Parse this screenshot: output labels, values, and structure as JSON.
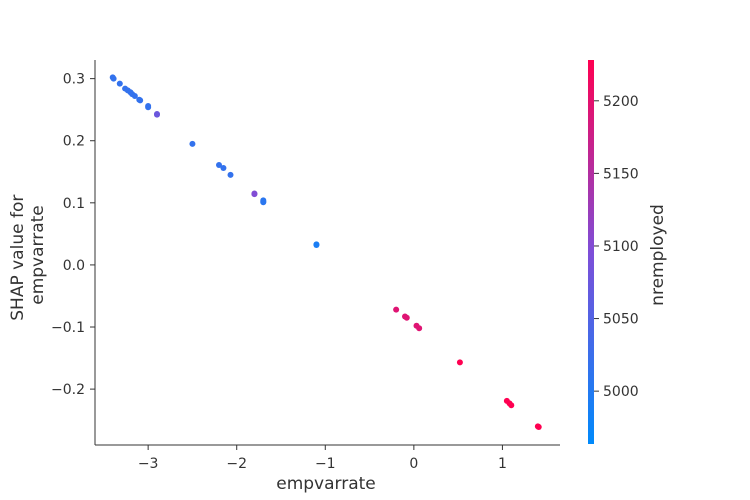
{
  "chart_data": {
    "type": "scatter",
    "title": "",
    "xlabel": "empvarrate",
    "ylabel_lines": [
      "SHAP value for",
      "empvarrate"
    ],
    "xlim": [
      -3.6,
      1.65
    ],
    "ylim": [
      -0.29,
      0.33
    ],
    "x_ticks": [
      -3,
      -2,
      -1,
      0,
      1
    ],
    "x_tick_labels": [
      "−3",
      "−2",
      "−1",
      "0",
      "1"
    ],
    "y_ticks": [
      0.3,
      0.2,
      0.1,
      0.0,
      -0.1,
      -0.2
    ],
    "y_tick_labels": [
      "0.3",
      "0.2",
      "0.1",
      "0.0",
      "−0.1",
      "−0.2"
    ],
    "colorbar": {
      "label": "nremployed",
      "range": [
        4963.6,
        5228.1
      ],
      "ticks": [
        5000,
        5050,
        5100,
        5150,
        5200
      ],
      "tick_labels": [
        "5000",
        "5050",
        "5100",
        "5150",
        "5200"
      ],
      "colors": [
        "#008afb",
        "#7e4ed8",
        "#ff0051"
      ]
    },
    "points": [
      {
        "x": -3.4,
        "y": 0.302,
        "c": 5017
      },
      {
        "x": -3.39,
        "y": 0.3,
        "c": 5017
      },
      {
        "x": -3.32,
        "y": 0.292,
        "c": 5017
      },
      {
        "x": -3.26,
        "y": 0.284,
        "c": 5017
      },
      {
        "x": -3.23,
        "y": 0.281,
        "c": 5017
      },
      {
        "x": -3.2,
        "y": 0.278,
        "c": 5017
      },
      {
        "x": -3.18,
        "y": 0.275,
        "c": 5017
      },
      {
        "x": -3.15,
        "y": 0.272,
        "c": 5017
      },
      {
        "x": -3.1,
        "y": 0.266,
        "c": 5017
      },
      {
        "x": -3.09,
        "y": 0.265,
        "c": 5017
      },
      {
        "x": -3.0,
        "y": 0.256,
        "c": 5017
      },
      {
        "x": -3.0,
        "y": 0.254,
        "c": 5017
      },
      {
        "x": -2.9,
        "y": 0.242,
        "c": 5076
      },
      {
        "x": -2.9,
        "y": 0.243,
        "c": 5076
      },
      {
        "x": -2.5,
        "y": 0.195,
        "c": 5017
      },
      {
        "x": -2.2,
        "y": 0.161,
        "c": 5017
      },
      {
        "x": -2.15,
        "y": 0.156,
        "c": 5017
      },
      {
        "x": -2.07,
        "y": 0.145,
        "c": 5017
      },
      {
        "x": -1.8,
        "y": 0.114,
        "c": 5099
      },
      {
        "x": -1.8,
        "y": 0.115,
        "c": 5099
      },
      {
        "x": -1.7,
        "y": 0.101,
        "c": 5008
      },
      {
        "x": -1.7,
        "y": 0.104,
        "c": 5008
      },
      {
        "x": -1.7,
        "y": 0.102,
        "c": 5008
      },
      {
        "x": -1.1,
        "y": 0.033,
        "c": 4991
      },
      {
        "x": -1.1,
        "y": 0.032,
        "c": 4991
      },
      {
        "x": -0.2,
        "y": -0.072,
        "c": 5195
      },
      {
        "x": -0.1,
        "y": -0.083,
        "c": 5195
      },
      {
        "x": -0.08,
        "y": -0.085,
        "c": 5195
      },
      {
        "x": 0.03,
        "y": -0.098,
        "c": 5195
      },
      {
        "x": 0.06,
        "y": -0.102,
        "c": 5195
      },
      {
        "x": 0.52,
        "y": -0.157,
        "c": 5228
      },
      {
        "x": 1.05,
        "y": -0.219,
        "c": 5228
      },
      {
        "x": 1.08,
        "y": -0.223,
        "c": 5228
      },
      {
        "x": 1.1,
        "y": -0.226,
        "c": 5228
      },
      {
        "x": 1.4,
        "y": -0.26,
        "c": 5228
      },
      {
        "x": 1.41,
        "y": -0.261,
        "c": 5228
      }
    ]
  }
}
